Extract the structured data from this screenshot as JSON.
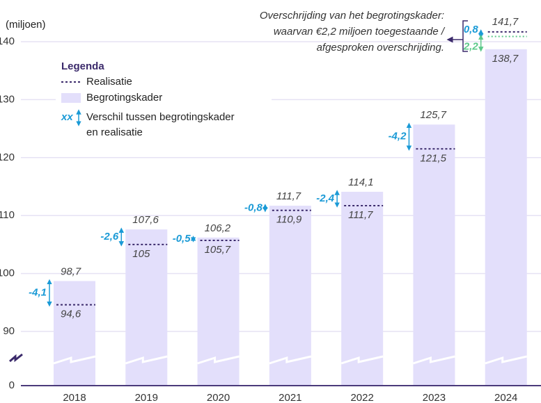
{
  "chart_data": {
    "type": "bar",
    "y_label": "(miljoen)",
    "categories": [
      "2018",
      "2019",
      "2020",
      "2021",
      "2022",
      "2023",
      "2024"
    ],
    "series": [
      {
        "name": "Begrotingskader",
        "color": "#e3dffb",
        "values": [
          98.7,
          107.6,
          106.2,
          111.7,
          114.1,
          125.7,
          138.7
        ],
        "value_labels": [
          "98,7",
          "107,6",
          "106,2",
          "111,7",
          "114,1",
          "125,7",
          "138,7"
        ]
      },
      {
        "name": "Realisatie",
        "color": "#3b2a6b",
        "values": [
          94.6,
          105,
          105.7,
          110.9,
          111.7,
          121.5,
          141.7
        ],
        "value_labels": [
          "94,6",
          "105",
          "105,7",
          "110,9",
          "111,7",
          "121,5",
          "141,7"
        ]
      }
    ],
    "difference": {
      "color": "#1a9ad6",
      "values": [
        -4.1,
        -2.6,
        -0.5,
        -0.8,
        -2.4,
        -4.2,
        null
      ],
      "value_labels": [
        "-4,1",
        "-2,6",
        "-0,5",
        "-0,8",
        "-2,4",
        "-4,2",
        null
      ]
    },
    "exceedance": {
      "text": [
        "Overschrijding van het begrotingskader:",
        "waarvan €2,2 miljoen toegestaande /",
        "afgesproken overschrijding."
      ],
      "values": [
        0.8,
        2.2
      ],
      "value_labels": [
        "0,8",
        "2,2"
      ],
      "colors": [
        "#1a9ad6",
        "#5cc98a"
      ]
    },
    "legend": {
      "title": "Legenda",
      "symbol": "xx",
      "difference_text": [
        "Verschil tussen begrotingskader",
        "en realisatie"
      ]
    },
    "ylim": [
      90,
      140
    ],
    "yticks": [
      0,
      90,
      100,
      110,
      120,
      130,
      140
    ],
    "axis_break": true,
    "grid": true
  }
}
